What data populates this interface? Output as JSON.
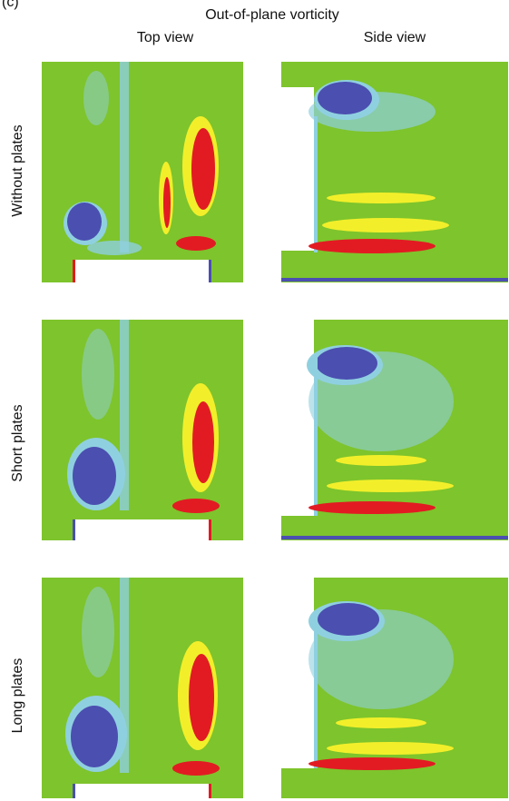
{
  "panel_label": "(c)",
  "title": "Out-of-plane vorticity",
  "columns": [
    "Top view",
    "Side view"
  ],
  "rows": [
    {
      "label": "Without plates"
    },
    {
      "label": "Short plates"
    },
    {
      "label": "Long plates"
    }
  ],
  "colors": {
    "background_field": "#7ec42c",
    "negative_strong": "#4b4fb0",
    "negative_weak": "#8fd0e0",
    "positive_weak": "#f2ef2a",
    "positive_strong": "#e21b22",
    "body": "#ffffff"
  }
}
